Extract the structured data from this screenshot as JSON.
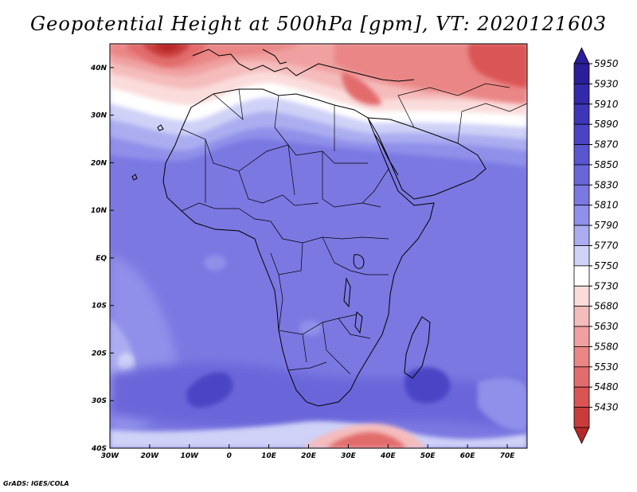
{
  "title": "Geopotential Height at 500hPa [gpm], VT: 2020121603",
  "credit": "GrADS: IGES/COLA",
  "map": {
    "lon_range": [
      -30,
      75
    ],
    "lat_range": [
      -40,
      45
    ],
    "lon_ticks": [
      {
        "value": -30,
        "label": "30W"
      },
      {
        "value": -20,
        "label": "20W"
      },
      {
        "value": -10,
        "label": "10W"
      },
      {
        "value": 0,
        "label": "0"
      },
      {
        "value": 10,
        "label": "10E"
      },
      {
        "value": 20,
        "label": "20E"
      },
      {
        "value": 30,
        "label": "30E"
      },
      {
        "value": 40,
        "label": "40E"
      },
      {
        "value": 50,
        "label": "50E"
      },
      {
        "value": 60,
        "label": "60E"
      },
      {
        "value": 70,
        "label": "70E"
      }
    ],
    "lat_ticks": [
      {
        "value": 40,
        "label": "40N"
      },
      {
        "value": 30,
        "label": "30N"
      },
      {
        "value": 20,
        "label": "20N"
      },
      {
        "value": 10,
        "label": "10N"
      },
      {
        "value": 0,
        "label": "EQ"
      },
      {
        "value": -10,
        "label": "10S"
      },
      {
        "value": -20,
        "label": "20S"
      },
      {
        "value": -30,
        "label": "30S"
      },
      {
        "value": -40,
        "label": "40S"
      }
    ]
  },
  "colorbar": {
    "levels": [
      {
        "label": "5950",
        "color": "#2a1e9a"
      },
      {
        "label": "5930",
        "color": "#3329aa"
      },
      {
        "label": "5910",
        "color": "#3e35b8"
      },
      {
        "label": "5890",
        "color": "#4a44c4"
      },
      {
        "label": "5870",
        "color": "#5a55d0"
      },
      {
        "label": "5850",
        "color": "#6a66da"
      },
      {
        "label": "5830",
        "color": "#7b78e2"
      },
      {
        "label": "5810",
        "color": "#9090ea"
      },
      {
        "label": "5790",
        "color": "#abadf0"
      },
      {
        "label": "5770",
        "color": "#cfd1f7"
      },
      {
        "label": "5750",
        "color": "#ffffff"
      },
      {
        "label": "5730",
        "color": "#fbdcdc"
      },
      {
        "label": "5680",
        "color": "#f5bcbc"
      },
      {
        "label": "5630",
        "color": "#f0a0a0"
      },
      {
        "label": "5580",
        "color": "#ea8686"
      },
      {
        "label": "5530",
        "color": "#e26c6c"
      },
      {
        "label": "5480",
        "color": "#da5454"
      },
      {
        "label": "5430",
        "color": "#c83c3c"
      }
    ],
    "top_color": "#2a1e9a",
    "bottom_color": "#b82828"
  }
}
